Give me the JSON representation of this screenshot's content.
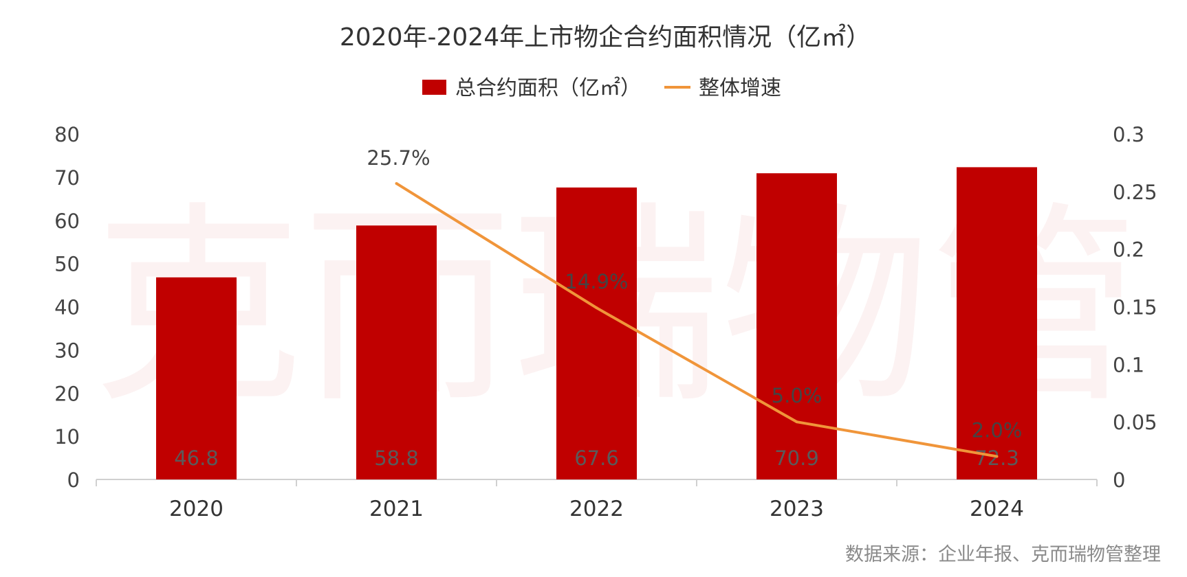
{
  "chart_data": {
    "type": "bar",
    "title": "2020年-2024年上市物企合约面积情况（亿㎡）",
    "categories": [
      "2020",
      "2021",
      "2022",
      "2023",
      "2024"
    ],
    "series": [
      {
        "name": "总合约面积（亿㎡）",
        "type": "bar",
        "axis": "left",
        "color": "#C00000",
        "values": [
          46.8,
          58.8,
          67.6,
          70.9,
          72.3
        ],
        "data_labels": [
          "46.8",
          "58.8",
          "67.6",
          "70.9",
          "72.3"
        ]
      },
      {
        "name": "整体增速",
        "type": "line",
        "axis": "right",
        "color": "#F0953A",
        "values": [
          null,
          0.257,
          0.149,
          0.05,
          0.02
        ],
        "data_labels": [
          "",
          "25.7%",
          "14.9%",
          "5.0%",
          "2.0%"
        ]
      }
    ],
    "y_left": {
      "ylim": [
        0,
        80
      ],
      "ticks": [
        "0",
        "10",
        "20",
        "30",
        "40",
        "50",
        "60",
        "70",
        "80"
      ]
    },
    "y_right": {
      "ylim": [
        0,
        0.3
      ],
      "ticks": [
        "0",
        "0.05",
        "0.1",
        "0.15",
        "0.2",
        "0.25",
        "0.3"
      ]
    },
    "legend_position": "top-center",
    "grid": false,
    "source_note": "数据来源：企业年报、克而瑞物管整理",
    "watermark": "克而瑞物管"
  }
}
